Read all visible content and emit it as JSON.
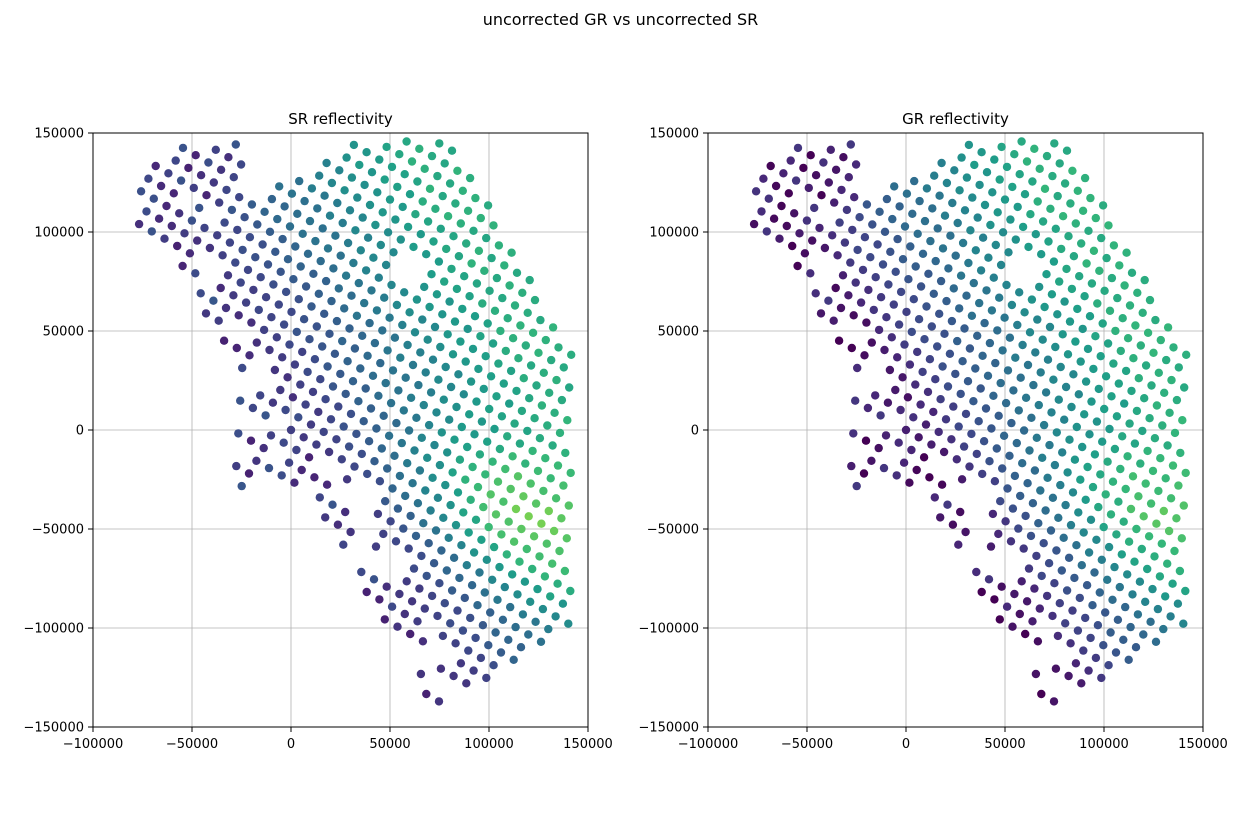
{
  "figure": {
    "suptitle": "uncorrected GR vs uncorrected SR"
  },
  "colors": {
    "grid": "#b0b0b0",
    "axis": "#000000",
    "colormap": "viridis"
  },
  "chart_data": [
    {
      "type": "scatter",
      "title": "SR reflectivity",
      "xlim": [
        -100000,
        150000
      ],
      "ylim": [
        -150000,
        150000
      ],
      "xticks": [
        "−100000",
        "−50000",
        "0",
        "50000",
        "100000",
        "150000"
      ],
      "yticks": [
        "−150000",
        "−100000",
        "−50000",
        "0",
        "50000",
        "100000",
        "150000"
      ],
      "grid": true,
      "field": "sr"
    },
    {
      "type": "scatter",
      "title": "GR reflectivity",
      "xlim": [
        -100000,
        150000
      ],
      "ylim": [
        -150000,
        150000
      ],
      "xticks": [
        "−100000",
        "−50000",
        "0",
        "50000",
        "100000",
        "150000"
      ],
      "yticks": [
        "−150000",
        "−100000",
        "−50000",
        "0",
        "50000",
        "100000",
        "150000"
      ],
      "grid": true,
      "field": "gr"
    }
  ]
}
